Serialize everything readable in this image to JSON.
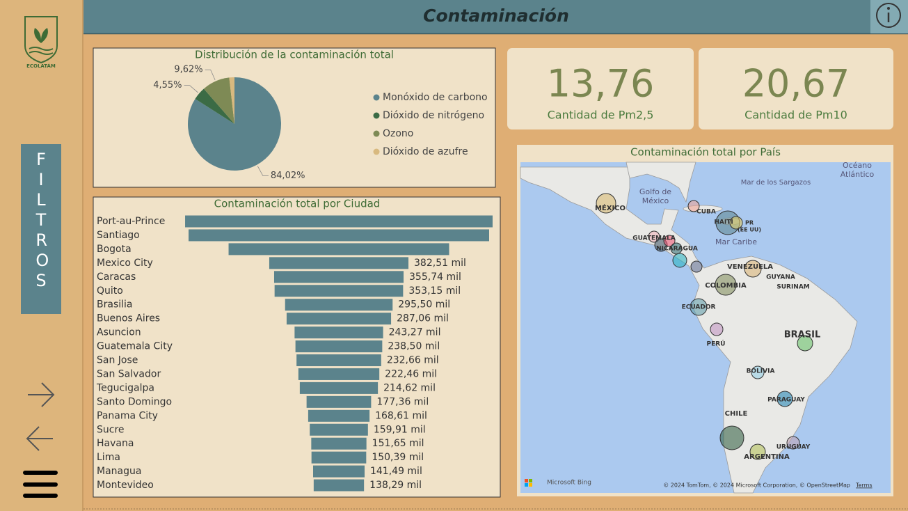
{
  "header": {
    "title": "Contaminación"
  },
  "sidebar": {
    "logo_text": "ECOLATÁM",
    "filters_label": "FILTROS"
  },
  "kpis": [
    {
      "value": "13,76",
      "label": "Cantidad de Pm2,5"
    },
    {
      "value": "20,67",
      "label": "Cantidad de Pm10"
    }
  ],
  "chart_data": [
    {
      "type": "pie",
      "title": "Distribución de la contaminación total",
      "categories": [
        "Monóxido de carbono",
        "Dióxido de nitrógeno",
        "Ozono",
        "Dióxido de azufre"
      ],
      "values": [
        84.02,
        4.55,
        9.62,
        1.81
      ],
      "value_labels": [
        "84,02%",
        "4,55%",
        "9,62%",
        null
      ],
      "colors": [
        "#5b838c",
        "#3b6b45",
        "#7e8a55",
        "#d8b97f"
      ]
    },
    {
      "type": "funnel",
      "title": "Contaminación total por Ciudad",
      "categories": [
        "Port-au-Prince",
        "Santiago",
        "Bogota",
        "Mexico City",
        "Caracas",
        "Quito",
        "Brasilia",
        "Buenos Aires",
        "Asuncion",
        "Guatemala City",
        "San Jose",
        "San Salvador",
        "Tegucigalpa",
        "Santo Domingo",
        "Panama City",
        "Sucre",
        "Havana",
        "Lima",
        "Managua",
        "Montevideo"
      ],
      "values": [
        845,
        826,
        606,
        382.51,
        355.74,
        353.15,
        295.5,
        287.06,
        243.27,
        238.5,
        232.66,
        222.46,
        214.62,
        177.36,
        168.61,
        159.91,
        151.65,
        150.39,
        141.49,
        138.29
      ],
      "value_labels": [
        null,
        null,
        null,
        "382,51 mil",
        "355,74 mil",
        "353,15 mil",
        "295,50 mil",
        "287,06 mil",
        "243,27 mil",
        "238,50 mil",
        "232,66 mil",
        "222,46 mil",
        "214,62 mil",
        "177,36 mil",
        "168,61 mil",
        "159,91 mil",
        "151,65 mil",
        "150,39 mil",
        "141,49 mil",
        "138,29 mil"
      ],
      "color": "#5b838c"
    }
  ],
  "map": {
    "title": "Contaminación total por País",
    "labels": [
      "Océano",
      "Atlántico",
      "Golfo de",
      "México",
      "Mar de los Sargazos",
      "MÉXICO",
      "CUBA",
      "HAITÍ",
      "PR",
      "(EE UU)",
      "GUATEMALA",
      "NICARAGUA",
      "Mar Caribe",
      "VENEZUELA",
      "GUYANA",
      "SURINAM",
      "COLOMBIA",
      "ECUADOR",
      "BRASIL",
      "PERÚ",
      "BOLIVIA",
      "PARAGUAY",
      "CHILE",
      "URUGUAY",
      "ARGENTINA"
    ],
    "provider": "Microsoft Bing",
    "attribution": "© 2024 TomTom, © 2024 Microsoft Corporation, © OpenStreetMap",
    "terms": "Terms"
  }
}
